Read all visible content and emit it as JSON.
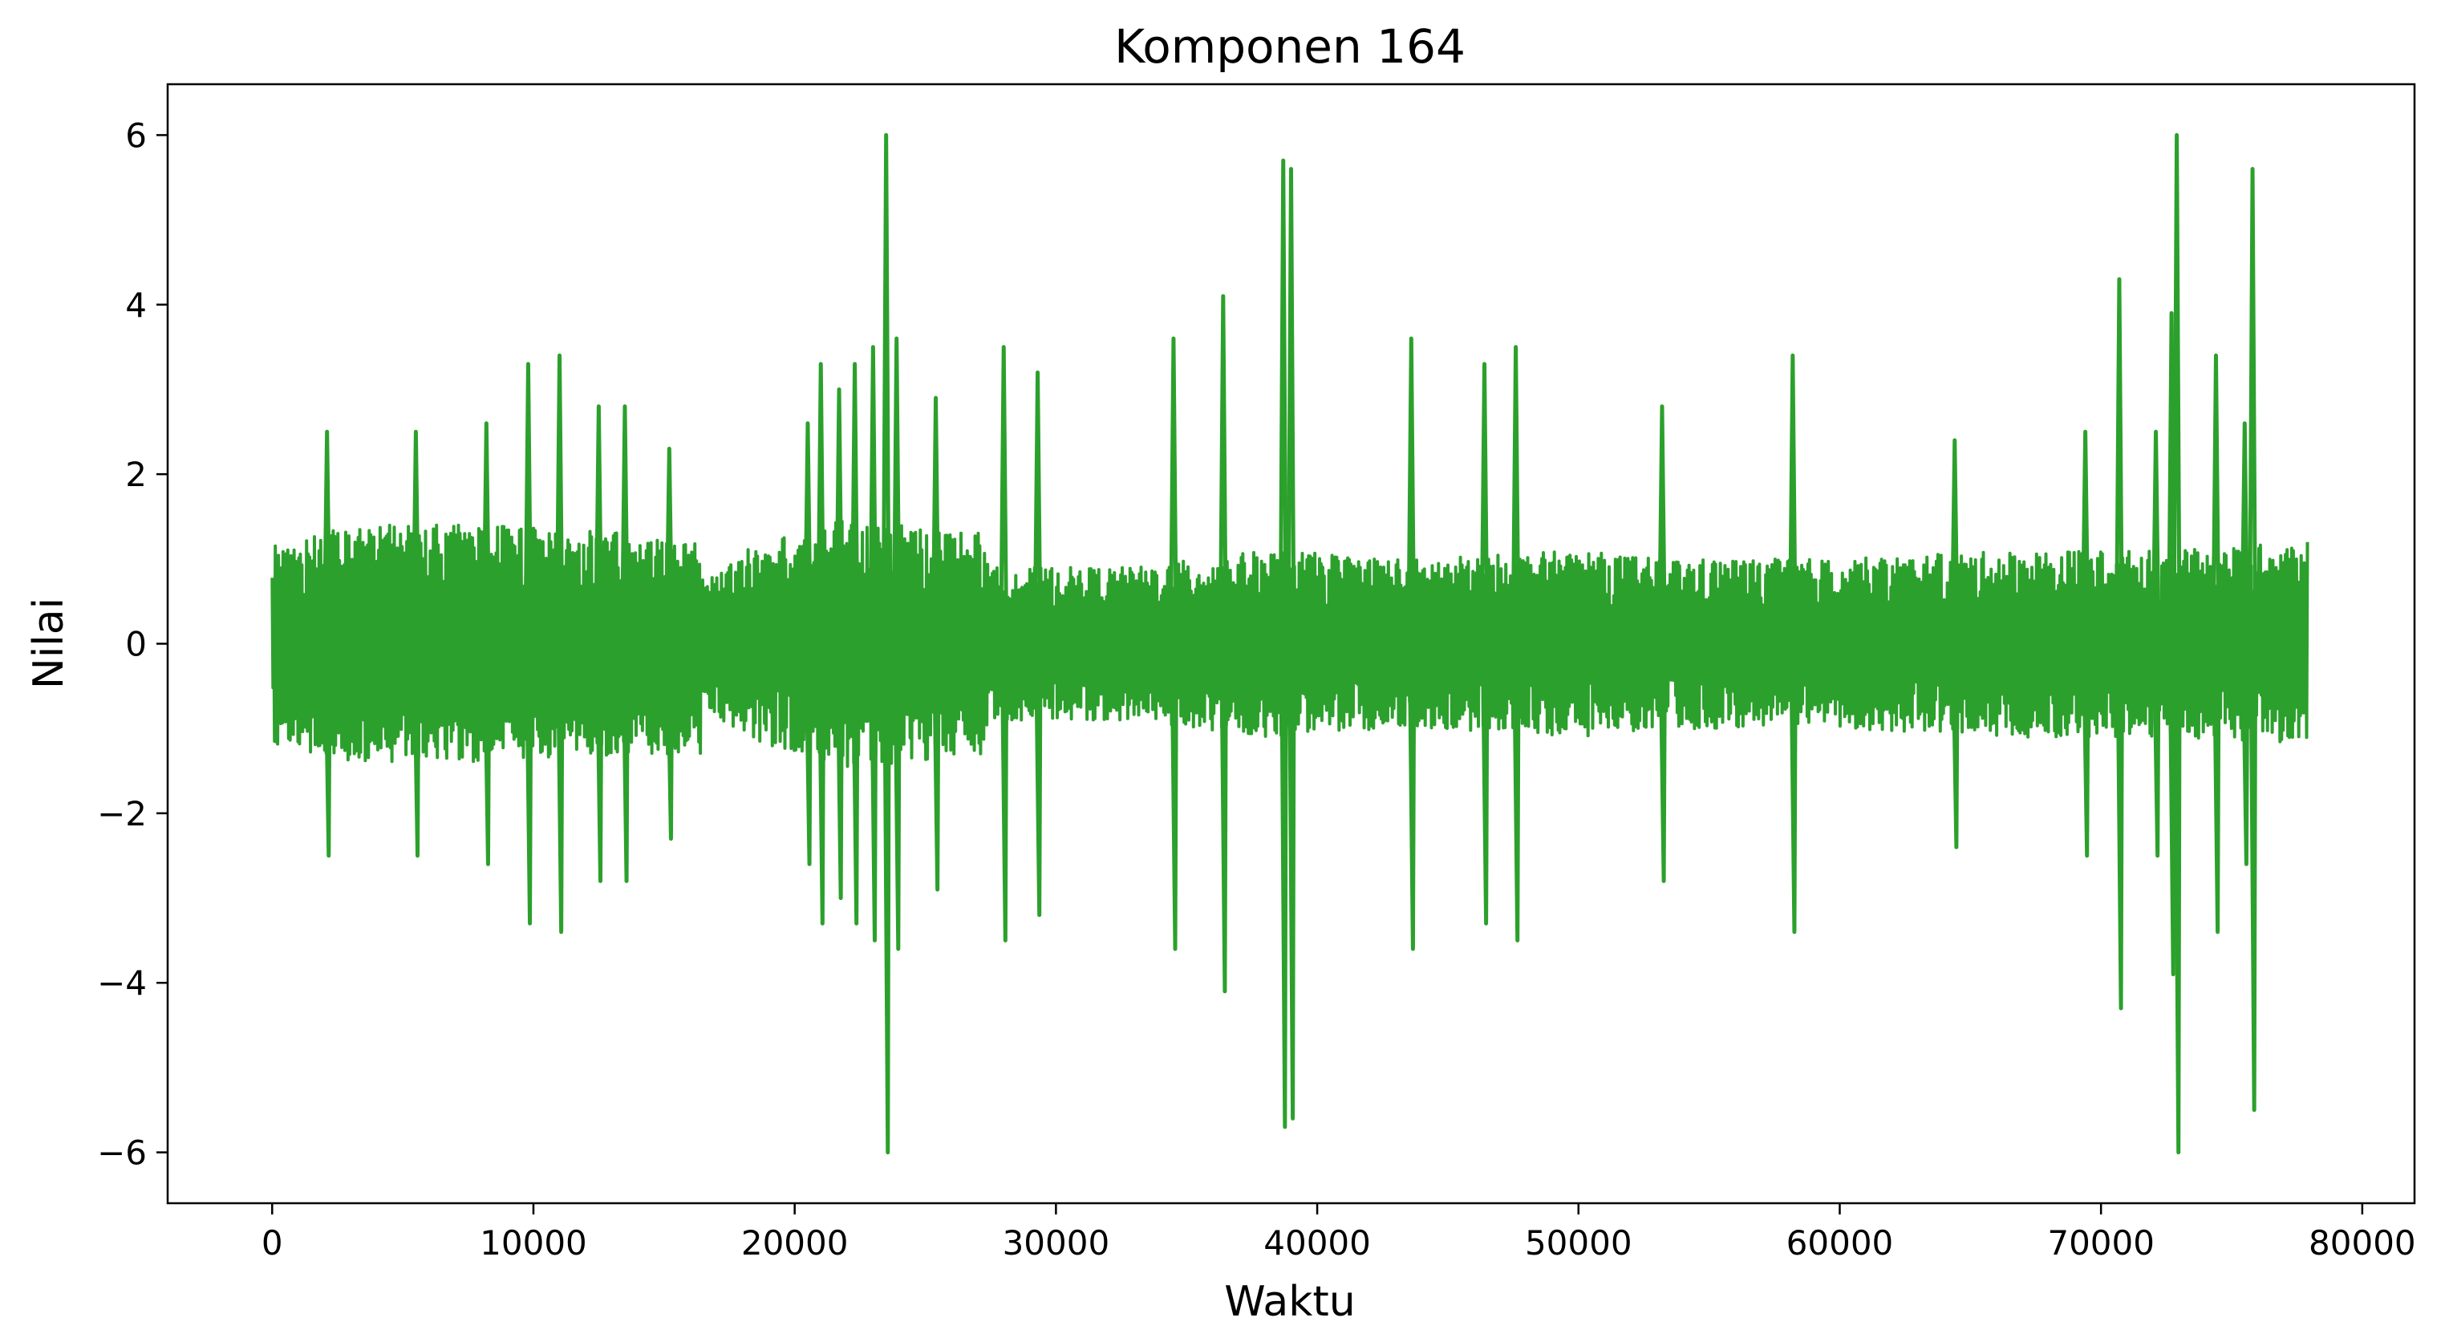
{
  "chart_data": {
    "type": "line",
    "title": "Komponen 164",
    "xlabel": "Waktu",
    "ylabel": "Nilai",
    "xlim": [
      -4000,
      82000
    ],
    "ylim": [
      -6.6,
      6.6
    ],
    "x_ticks": [
      0,
      10000,
      20000,
      30000,
      40000,
      50000,
      60000,
      70000,
      80000
    ],
    "x_tick_labels": [
      "0",
      "10000",
      "20000",
      "30000",
      "40000",
      "50000",
      "60000",
      "70000",
      "80000"
    ],
    "y_ticks": [
      -6,
      -4,
      -2,
      0,
      2,
      4,
      6
    ],
    "y_tick_labels": [
      "−6",
      "−4",
      "−2",
      "0",
      "2",
      "4",
      "6"
    ],
    "grid": false,
    "legend": "none",
    "series": [
      {
        "color": "#2ca02c",
        "x_range": [
          0,
          77900
        ],
        "dense_fill": true,
        "band_amplitude": [
          {
            "x": 0,
            "upper": 1.2,
            "lower": -1.2
          },
          {
            "x": 3000,
            "upper": 1.4,
            "lower": -1.4
          },
          {
            "x": 8000,
            "upper": 1.4,
            "lower": -1.4
          },
          {
            "x": 14000,
            "upper": 1.3,
            "lower": -1.3
          },
          {
            "x": 16400,
            "upper": 1.3,
            "lower": -1.3
          },
          {
            "x": 16500,
            "upper": 0.7,
            "lower": -0.7
          },
          {
            "x": 18000,
            "upper": 1.1,
            "lower": -1.1
          },
          {
            "x": 22000,
            "upper": 1.5,
            "lower": -1.5
          },
          {
            "x": 24000,
            "upper": 1.4,
            "lower": -1.4
          },
          {
            "x": 27300,
            "upper": 1.3,
            "lower": -1.3
          },
          {
            "x": 27400,
            "upper": 0.9,
            "lower": -0.9
          },
          {
            "x": 33000,
            "upper": 0.9,
            "lower": -0.9
          },
          {
            "x": 38000,
            "upper": 1.1,
            "lower": -1.1
          },
          {
            "x": 44000,
            "upper": 1.0,
            "lower": -1.0
          },
          {
            "x": 50000,
            "upper": 1.1,
            "lower": -1.1
          },
          {
            "x": 53000,
            "upper": 1.0,
            "lower": -1.0
          },
          {
            "x": 60000,
            "upper": 1.0,
            "lower": -1.0
          },
          {
            "x": 67000,
            "upper": 1.1,
            "lower": -1.1
          },
          {
            "x": 73000,
            "upper": 1.1,
            "lower": -1.1
          },
          {
            "x": 77900,
            "upper": 1.2,
            "lower": -1.2
          }
        ],
        "peaks": [
          {
            "x": 2100,
            "upper": 2.5,
            "lower": -2.5
          },
          {
            "x": 5500,
            "upper": 2.5,
            "lower": -2.5
          },
          {
            "x": 8200,
            "upper": 2.6,
            "lower": -2.6
          },
          {
            "x": 9800,
            "upper": 3.3,
            "lower": -3.3
          },
          {
            "x": 11000,
            "upper": 3.4,
            "lower": -3.4
          },
          {
            "x": 12500,
            "upper": 2.8,
            "lower": -2.8
          },
          {
            "x": 13500,
            "upper": 2.8,
            "lower": -2.8
          },
          {
            "x": 15200,
            "upper": 2.3,
            "lower": -2.3
          },
          {
            "x": 20500,
            "upper": 2.6,
            "lower": -2.6
          },
          {
            "x": 21000,
            "upper": 3.3,
            "lower": -3.3
          },
          {
            "x": 21700,
            "upper": 3.0,
            "lower": -3.0
          },
          {
            "x": 22300,
            "upper": 3.3,
            "lower": -3.3
          },
          {
            "x": 23000,
            "upper": 3.5,
            "lower": -3.5
          },
          {
            "x": 23500,
            "upper": 6.0,
            "lower": -6.0
          },
          {
            "x": 23900,
            "upper": 3.6,
            "lower": -3.6
          },
          {
            "x": 25400,
            "upper": 2.9,
            "lower": -2.9
          },
          {
            "x": 28000,
            "upper": 3.5,
            "lower": -3.5
          },
          {
            "x": 29300,
            "upper": 3.2,
            "lower": -3.2
          },
          {
            "x": 34500,
            "upper": 3.6,
            "lower": -3.6
          },
          {
            "x": 36400,
            "upper": 4.1,
            "lower": -4.1
          },
          {
            "x": 38700,
            "upper": 5.7,
            "lower": -5.7
          },
          {
            "x": 39000,
            "upper": 5.6,
            "lower": -5.6
          },
          {
            "x": 43600,
            "upper": 3.6,
            "lower": -3.6
          },
          {
            "x": 46400,
            "upper": 3.3,
            "lower": -3.3
          },
          {
            "x": 47600,
            "upper": 3.5,
            "lower": -3.5
          },
          {
            "x": 53200,
            "upper": 2.8,
            "lower": -2.8
          },
          {
            "x": 58200,
            "upper": 3.4,
            "lower": -3.4
          },
          {
            "x": 64400,
            "upper": 2.4,
            "lower": -2.4
          },
          {
            "x": 69400,
            "upper": 2.5,
            "lower": -2.5
          },
          {
            "x": 70700,
            "upper": 4.3,
            "lower": -4.3
          },
          {
            "x": 72100,
            "upper": 2.5,
            "lower": -2.5
          },
          {
            "x": 72700,
            "upper": 3.9,
            "lower": -3.9
          },
          {
            "x": 72900,
            "upper": 6.0,
            "lower": -6.0
          },
          {
            "x": 74400,
            "upper": 3.4,
            "lower": -3.4
          },
          {
            "x": 75500,
            "upper": 2.6,
            "lower": -2.6
          },
          {
            "x": 75800,
            "upper": 5.6,
            "lower": -5.5
          }
        ]
      }
    ]
  }
}
